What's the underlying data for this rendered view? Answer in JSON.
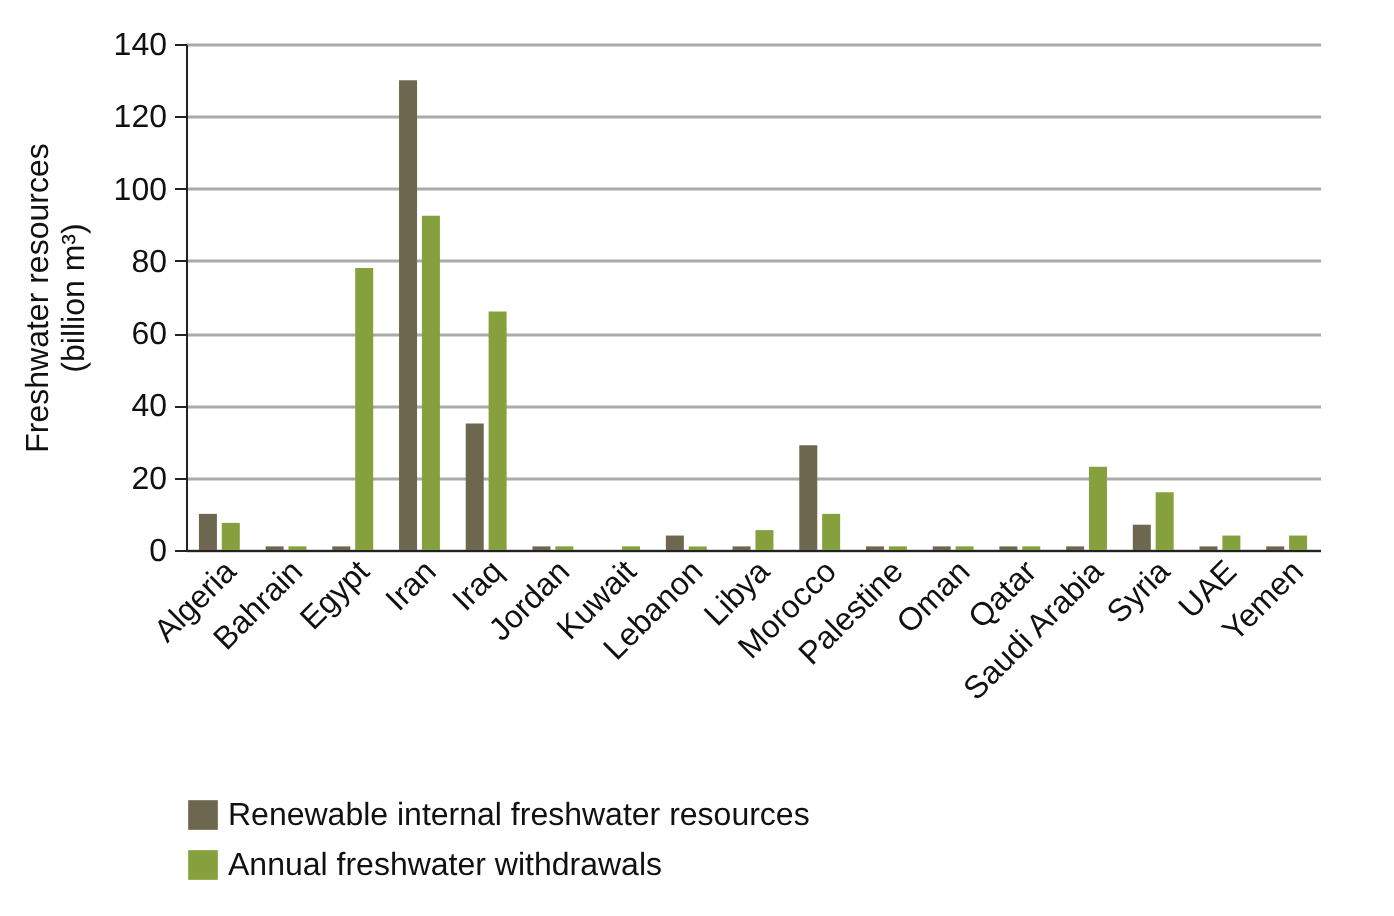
{
  "chart_data": {
    "type": "bar",
    "ylabel": "Freshwater resources\n(billion m³)",
    "categories": [
      "Algeria",
      "Bahrain",
      "Egypt",
      "Iran",
      "Iraq",
      "Jordan",
      "Kuwait",
      "Lebanon",
      "Libya",
      "Morocco",
      "Palestine",
      "Oman",
      "Qatar",
      "Saudi Arabia",
      "Syria",
      "UAE",
      "Yemen"
    ],
    "series": [
      {
        "name": "Renewable internal freshwater resources",
        "color": "#6e6750",
        "values": [
          10,
          1,
          1,
          130,
          35,
          1,
          0,
          4,
          1,
          29,
          1,
          1,
          1,
          1,
          7,
          1,
          1
        ]
      },
      {
        "name": "Annual freshwater withdrawals",
        "color": "#85a03c",
        "values": [
          7.5,
          1,
          78,
          92.5,
          66,
          1,
          1,
          1,
          5.5,
          10,
          1,
          1,
          1,
          23,
          16,
          4,
          4
        ]
      }
    ],
    "ylim": [
      0,
      140
    ],
    "yticks": [
      0,
      20,
      40,
      60,
      80,
      100,
      120,
      140
    ],
    "grid": "y",
    "legend": "bottom"
  }
}
